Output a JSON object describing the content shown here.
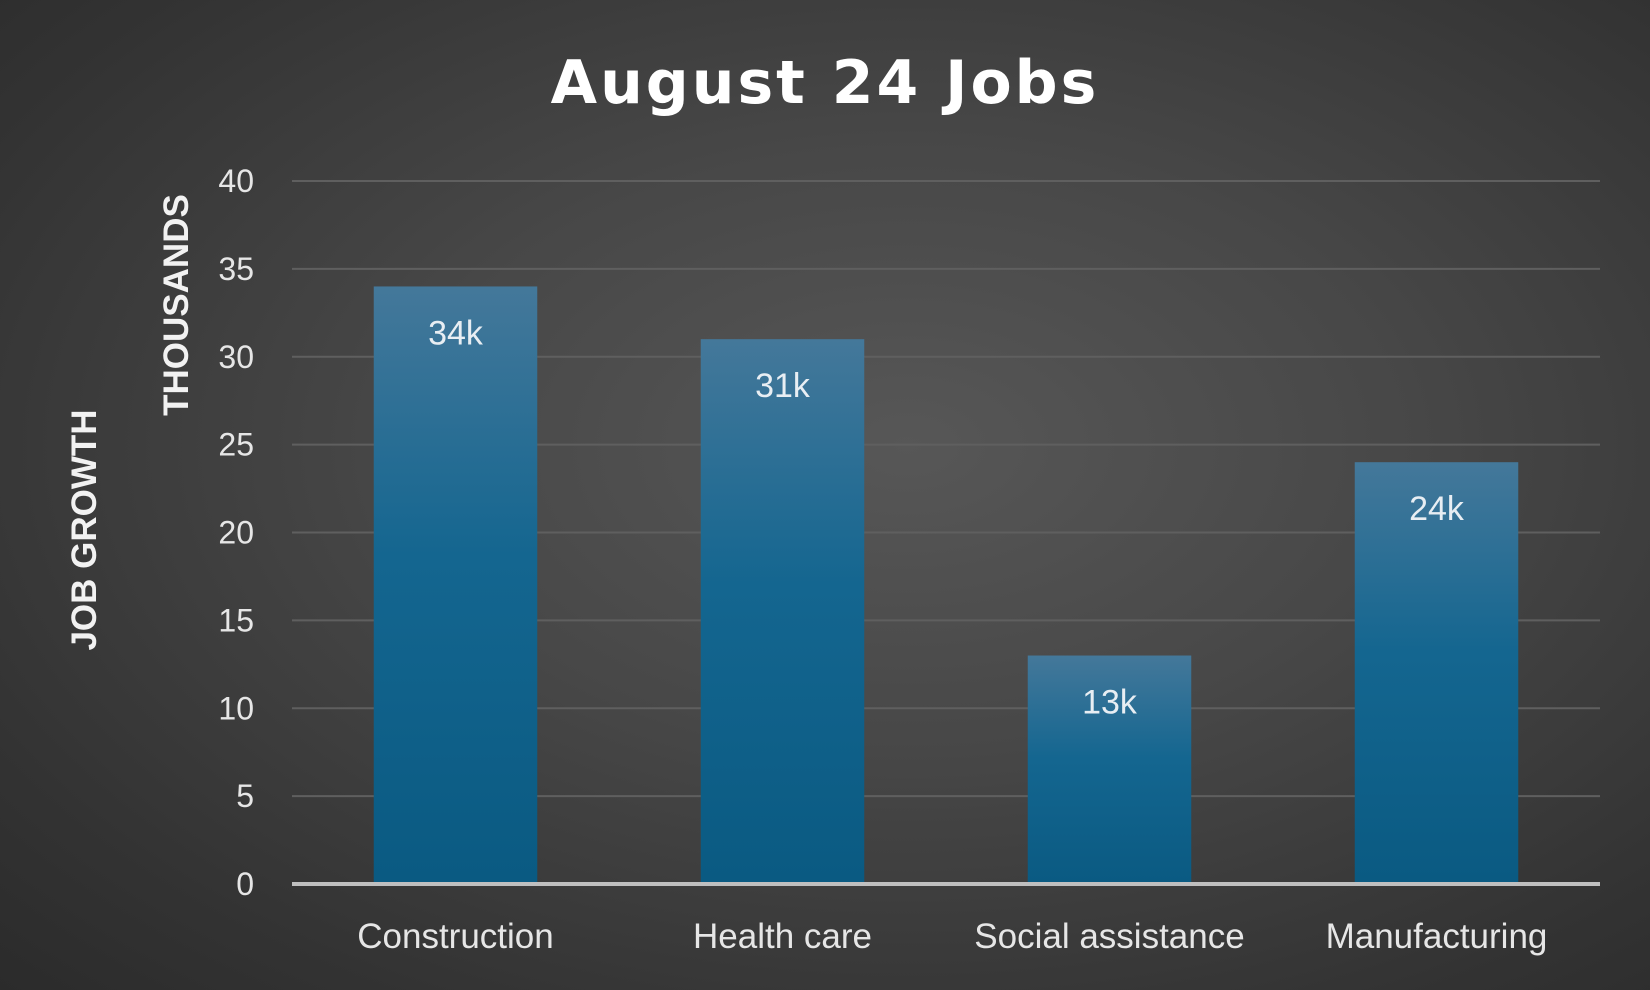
{
  "colors": {
    "bar_top": "#44789a",
    "bar_mid": "#146690",
    "bar_bottom": "#0a5a82"
  },
  "chart_data": {
    "type": "bar",
    "title": "August 24 Jobs",
    "ylabel": "JOB GROWTH",
    "ylabel_unit": "THOUSANDS",
    "xlabel": "",
    "categories": [
      "Construction",
      "Health care",
      "Social assistance",
      "Manufacturing"
    ],
    "values": [
      34,
      31,
      13,
      24
    ],
    "data_labels": [
      "34k",
      "31k",
      "13k",
      "24k"
    ],
    "ylim": [
      0,
      40
    ],
    "yticks": [
      0,
      5,
      10,
      15,
      20,
      25,
      30,
      35,
      40
    ],
    "grid": true,
    "legend": "none"
  }
}
